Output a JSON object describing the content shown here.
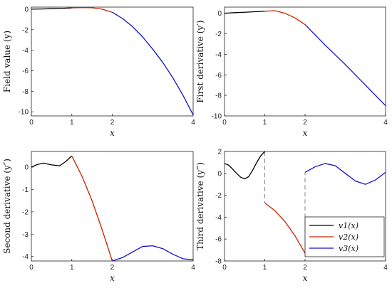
{
  "chart_data": [
    {
      "type": "line",
      "xlabel": "x",
      "ylabel": "Field value (y)",
      "xlim": [
        0,
        4
      ],
      "ylim": [
        -10.4,
        0.2
      ],
      "xticks": [
        "0",
        "1",
        "2",
        "4"
      ],
      "yticks": [
        "0",
        "-2",
        "-4",
        "-6",
        "-8",
        "-10"
      ],
      "series": [
        {
          "name": "v1(x)",
          "color": "#000000",
          "x": [
            0,
            0.25,
            0.5,
            0.75,
            1.0
          ],
          "y": [
            0.0,
            0.02,
            0.05,
            0.08,
            0.12
          ]
        },
        {
          "name": "v2(x)",
          "color": "#cc2200",
          "x": [
            1.0,
            1.25,
            1.5,
            1.75,
            2.0
          ],
          "y": [
            0.12,
            0.16,
            0.14,
            0.0,
            -0.3
          ]
        },
        {
          "name": "v3(x)",
          "color": "#1111cc",
          "x": [
            2.0,
            2.25,
            2.5,
            2.75,
            3.0,
            3.25,
            3.5,
            3.75,
            4.0
          ],
          "y": [
            -0.3,
            -0.9,
            -1.7,
            -2.7,
            -3.9,
            -5.2,
            -6.7,
            -8.4,
            -10.3
          ]
        }
      ]
    },
    {
      "type": "line",
      "xlabel": "x",
      "ylabel": "First derivative (y′)",
      "xlim": [
        0,
        4
      ],
      "ylim": [
        -10,
        0.6
      ],
      "xticks": [
        "0",
        "1",
        "2",
        "4"
      ],
      "yticks": [
        "0",
        "-2",
        "-4",
        "-6",
        "-8",
        "-10"
      ],
      "series": [
        {
          "name": "v1(x)",
          "color": "#000000",
          "x": [
            0,
            0.25,
            0.5,
            0.75,
            1.0
          ],
          "y": [
            0.0,
            0.06,
            0.1,
            0.15,
            0.2
          ]
        },
        {
          "name": "v2(x)",
          "color": "#cc2200",
          "x": [
            1.0,
            1.25,
            1.5,
            1.75,
            2.0
          ],
          "y": [
            0.2,
            0.25,
            0.0,
            -0.45,
            -1.1
          ]
        },
        {
          "name": "v3(x)",
          "color": "#1111cc",
          "x": [
            2.0,
            2.5,
            3.0,
            3.5,
            4.0
          ],
          "y": [
            -1.1,
            -3.1,
            -5.0,
            -7.0,
            -9.0
          ]
        }
      ]
    },
    {
      "type": "line",
      "xlabel": "x",
      "ylabel": "Second derivative (y″)",
      "xlim": [
        0,
        4
      ],
      "ylim": [
        -4.2,
        0.7
      ],
      "xticks": [
        "0",
        "1",
        "2",
        "4"
      ],
      "yticks": [
        "0",
        "-1",
        "-2",
        "-3",
        "-4"
      ],
      "series": [
        {
          "name": "v1(x)",
          "color": "#000000",
          "x": [
            0,
            0.15,
            0.3,
            0.5,
            0.7,
            0.85,
            1.0
          ],
          "y": [
            0.0,
            0.12,
            0.18,
            0.1,
            0.06,
            0.25,
            0.5
          ]
        },
        {
          "name": "v2(x)",
          "color": "#cc2200",
          "x": [
            1.0,
            1.25,
            1.5,
            1.75,
            2.0
          ],
          "y": [
            0.5,
            -0.4,
            -1.5,
            -2.8,
            -4.2
          ]
        },
        {
          "name": "v3(x)",
          "color": "#1111cc",
          "x": [
            2.0,
            2.25,
            2.5,
            2.75,
            3.0,
            3.25,
            3.5,
            3.75,
            4.0
          ],
          "y": [
            -4.2,
            -4.05,
            -3.8,
            -3.55,
            -3.52,
            -3.65,
            -3.9,
            -4.1,
            -4.15
          ]
        }
      ]
    },
    {
      "type": "line",
      "xlabel": "x",
      "ylabel": "Third derivative (y‴)",
      "xlim": [
        0,
        4
      ],
      "ylim": [
        -8,
        2
      ],
      "xticks": [
        "0",
        "1",
        "2",
        "4"
      ],
      "yticks": [
        "2",
        "0",
        "-2",
        "-4",
        "-6",
        "-8"
      ],
      "legend": {
        "position": "lower-right",
        "entries": [
          "v1(x)",
          "v2(x)",
          "v3(x)"
        ]
      },
      "jumps": [
        {
          "x": 1,
          "from": 2.0,
          "to": -2.7
        },
        {
          "x": 2,
          "from": -7.3,
          "to": 0.1
        }
      ],
      "series": [
        {
          "name": "v1(x)",
          "color": "#000000",
          "x": [
            0,
            0.1,
            0.2,
            0.3,
            0.4,
            0.5,
            0.6,
            0.7,
            0.8,
            0.9,
            1.0
          ],
          "y": [
            0.9,
            0.75,
            0.4,
            0.0,
            -0.35,
            -0.5,
            -0.3,
            0.3,
            1.0,
            1.6,
            2.0
          ]
        },
        {
          "name": "v2(x)",
          "color": "#cc2200",
          "x": [
            1.0,
            1.25,
            1.5,
            1.75,
            2.0
          ],
          "y": [
            -2.7,
            -3.4,
            -4.4,
            -5.7,
            -7.3
          ]
        },
        {
          "name": "v3(x)",
          "color": "#1111cc",
          "x": [
            2.0,
            2.25,
            2.5,
            2.75,
            3.0,
            3.25,
            3.5,
            3.75,
            4.0
          ],
          "y": [
            0.1,
            0.6,
            0.9,
            0.7,
            0.0,
            -0.7,
            -1.0,
            -0.6,
            0.1
          ]
        }
      ]
    }
  ]
}
